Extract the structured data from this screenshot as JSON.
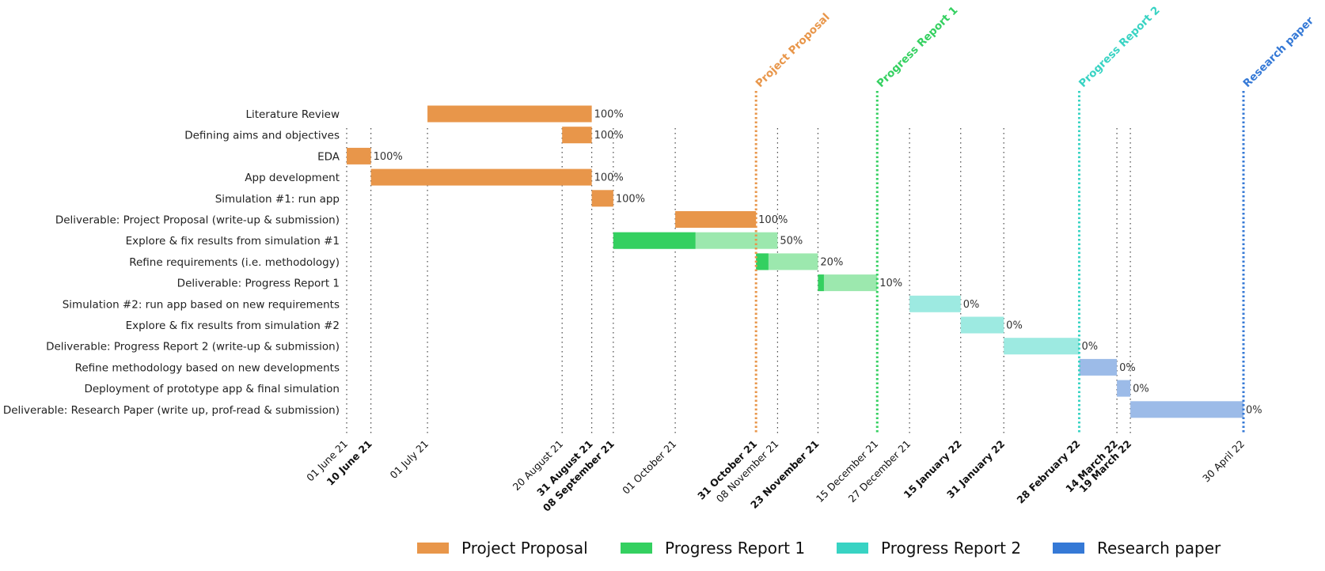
{
  "chart_data": {
    "type": "gantt",
    "phases": [
      {
        "name": "Project Proposal",
        "color": "#E8964A",
        "light_color": "#E8964A"
      },
      {
        "name": "Progress Report 1",
        "color": "#34D060",
        "light_color": "#9CE8AE"
      },
      {
        "name": "Progress Report 2",
        "color": "#38D3C3",
        "light_color": "#9DEAE1"
      },
      {
        "name": "Research paper",
        "color": "#3579D6",
        "light_color": "#9CBBE8"
      }
    ],
    "tasks": [
      {
        "name": "Literature Review",
        "start": "2021-07-01",
        "end": "2021-08-31",
        "phase": 0,
        "completion": 100,
        "label": "100%"
      },
      {
        "name": "Defining aims and objectives",
        "start": "2021-08-20",
        "end": "2021-08-31",
        "phase": 0,
        "completion": 100,
        "label": "100%"
      },
      {
        "name": "EDA",
        "start": "2021-06-01",
        "end": "2021-06-10",
        "phase": 0,
        "completion": 100,
        "label": "100%"
      },
      {
        "name": "App development",
        "start": "2021-06-10",
        "end": "2021-08-31",
        "phase": 0,
        "completion": 100,
        "label": "100%"
      },
      {
        "name": "Simulation #1: run app",
        "start": "2021-08-31",
        "end": "2021-09-08",
        "phase": 0,
        "completion": 100,
        "label": "100%"
      },
      {
        "name": "Deliverable: Project Proposal (write-up & submission)",
        "start": "2021-10-01",
        "end": "2021-10-31",
        "phase": 0,
        "completion": 100,
        "label": "100%"
      },
      {
        "name": "Explore & fix results from simulation #1",
        "start": "2021-09-08",
        "end": "2021-11-08",
        "phase": 1,
        "completion": 50,
        "label": "50%"
      },
      {
        "name": "Refine requirements (i.e. methodology)",
        "start": "2021-10-31",
        "end": "2021-11-23",
        "phase": 1,
        "completion": 20,
        "label": "20%"
      },
      {
        "name": "Deliverable: Progress Report 1",
        "start": "2021-11-23",
        "end": "2021-12-15",
        "phase": 1,
        "completion": 10,
        "label": "10%"
      },
      {
        "name": "Simulation #2: run app based on new requirements",
        "start": "2021-12-27",
        "end": "2022-01-15",
        "phase": 2,
        "completion": 0,
        "label": "0%"
      },
      {
        "name": "Explore & fix results from simulation #2",
        "start": "2022-01-15",
        "end": "2022-01-31",
        "phase": 2,
        "completion": 0,
        "label": "0%"
      },
      {
        "name": "Deliverable: Progress Report 2 (write-up & submission)",
        "start": "2022-01-31",
        "end": "2022-02-28",
        "phase": 2,
        "completion": 0,
        "label": "0%"
      },
      {
        "name": "Refine methodology based on new developments",
        "start": "2022-02-28",
        "end": "2022-03-14",
        "phase": 3,
        "completion": 0,
        "label": "0%"
      },
      {
        "name": "Deployment of prototype app & final simulation",
        "start": "2022-03-14",
        "end": "2022-03-19",
        "phase": 3,
        "completion": 0,
        "label": "0%"
      },
      {
        "name": "Deliverable: Research Paper (write up, prof-read & submission)",
        "start": "2022-03-19",
        "end": "2022-04-30",
        "phase": 3,
        "completion": 0,
        "label": "0%"
      }
    ],
    "x_ticks": [
      {
        "date": "2021-06-01",
        "label": "01 June 21",
        "bold": false
      },
      {
        "date": "2021-06-10",
        "label": "10 June 21",
        "bold": true
      },
      {
        "date": "2021-07-01",
        "label": "01 July 21",
        "bold": false
      },
      {
        "date": "2021-08-20",
        "label": "20 August 21",
        "bold": false
      },
      {
        "date": "2021-08-31",
        "label": "31 August 21",
        "bold": true
      },
      {
        "date": "2021-09-08",
        "label": "08 September 21",
        "bold": true
      },
      {
        "date": "2021-10-01",
        "label": "01 October 21",
        "bold": false
      },
      {
        "date": "2021-10-31",
        "label": "31 October 21",
        "bold": true
      },
      {
        "date": "2021-11-08",
        "label": "08 November 21",
        "bold": false
      },
      {
        "date": "2021-11-23",
        "label": "23 November 21",
        "bold": true
      },
      {
        "date": "2021-12-15",
        "label": "15 December 21",
        "bold": false
      },
      {
        "date": "2021-12-27",
        "label": "27 December 21",
        "bold": false
      },
      {
        "date": "2022-01-15",
        "label": "15 January 22",
        "bold": true
      },
      {
        "date": "2022-01-31",
        "label": "31 January 22",
        "bold": true
      },
      {
        "date": "2022-02-28",
        "label": "28 February 22",
        "bold": true
      },
      {
        "date": "2022-03-14",
        "label": "14 March 22",
        "bold": true
      },
      {
        "date": "2022-03-19",
        "label": "19 March 22",
        "bold": true
      },
      {
        "date": "2022-04-30",
        "label": "30 April 22",
        "bold": false
      }
    ],
    "milestones": [
      {
        "name": "Project Proposal",
        "date": "2021-10-31",
        "phase": 0
      },
      {
        "name": "Progress Report 1",
        "date": "2021-12-15",
        "phase": 1
      },
      {
        "name": "Progress Report 2",
        "date": "2022-02-28",
        "phase": 2
      },
      {
        "name": "Research paper",
        "date": "2022-04-30",
        "phase": 3
      }
    ],
    "xlim": [
      "2021-06-01",
      "2022-04-30"
    ],
    "grid": "dotted vertical lines at tick dates",
    "legend_position": "bottom"
  }
}
